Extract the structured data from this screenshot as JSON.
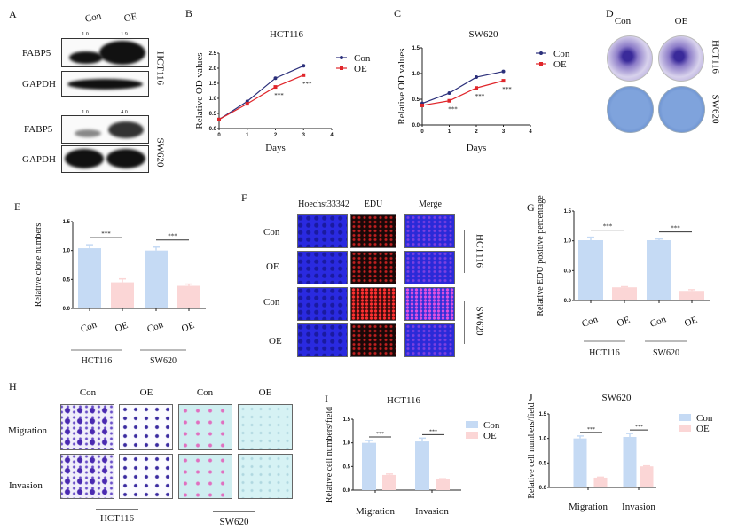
{
  "panel_letters": {
    "A": "A",
    "B": "B",
    "C": "C",
    "D": "D",
    "E": "E",
    "F": "F",
    "G": "G",
    "H": "H",
    "I": "I",
    "J": "J"
  },
  "western_blot": {
    "lanes": [
      "Con",
      "OE"
    ],
    "hct116": {
      "cell_line": "HCT116",
      "ratios": [
        "1.0",
        "1.9"
      ],
      "target": "FABP5",
      "loading_control": "GAPDH"
    },
    "sw620": {
      "cell_line": "SW620",
      "ratios": [
        "1.0",
        "4.0"
      ],
      "target": "FABP5",
      "loading_control": "GAPDH"
    }
  },
  "colony_images": {
    "columns": [
      "Con",
      "OE"
    ],
    "rows": [
      "HCT116",
      "SW620"
    ]
  },
  "edu_images": {
    "columns": [
      "Hoechst33342",
      "EDU",
      "Merge"
    ],
    "rows": [
      "Con",
      "OE",
      "Con",
      "OE"
    ],
    "groups": [
      "HCT116",
      "SW620"
    ]
  },
  "transwell_images": {
    "columns": [
      "Con",
      "OE",
      "Con",
      "OE"
    ],
    "rows": [
      "Migration",
      "Invasion"
    ],
    "groups": [
      "HCT116",
      "SW620"
    ]
  },
  "colors": {
    "con_line": "#2b2f7a",
    "oe_line": "#e0262b",
    "con_bar": "#c5daf4",
    "oe_bar": "#fbd6d6"
  },
  "chart_data": [
    {
      "panel": "B",
      "type": "line",
      "title": "HCT116",
      "xlabel": "Days",
      "ylabel": "Relative OD values",
      "x": [
        0,
        1,
        2,
        3
      ],
      "xlim": [
        0,
        4
      ],
      "xticks": [
        "0",
        "1",
        "2",
        "3",
        "4"
      ],
      "ylim": [
        0,
        2.5
      ],
      "yticks": [
        "0.0",
        "0.5",
        "1.0",
        "1.5",
        "2.0",
        "2.5"
      ],
      "series": [
        {
          "name": "Con",
          "values": [
            0.3,
            0.9,
            1.67,
            2.08
          ]
        },
        {
          "name": "OE",
          "values": [
            0.3,
            0.82,
            1.38,
            1.77
          ]
        }
      ],
      "significance": [
        {
          "x": 2,
          "label": "***"
        },
        {
          "x": 3,
          "label": "***"
        }
      ],
      "legend": "right"
    },
    {
      "panel": "C",
      "type": "line",
      "title": "SW620",
      "xlabel": "Days",
      "ylabel": "Relative OD values",
      "x": [
        0,
        1,
        2,
        3
      ],
      "xlim": [
        0,
        4
      ],
      "xticks": [
        "0",
        "1",
        "2",
        "3",
        "4"
      ],
      "ylim": [
        0,
        1.5
      ],
      "yticks": [
        "0.0",
        "0.5",
        "1.0",
        "1.5"
      ],
      "series": [
        {
          "name": "Con",
          "values": [
            0.42,
            0.62,
            0.93,
            1.04
          ]
        },
        {
          "name": "OE",
          "values": [
            0.38,
            0.47,
            0.72,
            0.86
          ]
        }
      ],
      "significance": [
        {
          "x": 1,
          "label": "***"
        },
        {
          "x": 2,
          "label": "***"
        },
        {
          "x": 3,
          "label": "***"
        }
      ],
      "legend": "right"
    },
    {
      "panel": "E",
      "type": "bar",
      "ylabel": "Relative clone numbers",
      "categories": [
        "Con",
        "OE",
        "Con",
        "OE"
      ],
      "groups": [
        "HCT116",
        "SW620"
      ],
      "values": [
        1.04,
        0.45,
        1.0,
        0.39
      ],
      "errors": [
        0.06,
        0.06,
        0.06,
        0.03
      ],
      "ylim": [
        0,
        1.5
      ],
      "yticks": [
        "0.0",
        "0.5",
        "1.0",
        "1.5"
      ],
      "significance": [
        {
          "pair": [
            0,
            1
          ],
          "label": "***"
        },
        {
          "pair": [
            2,
            3
          ],
          "label": "***"
        }
      ]
    },
    {
      "panel": "G",
      "type": "bar",
      "ylabel": "Relative EDU positive percentage",
      "categories": [
        "Con",
        "OE",
        "Con",
        "OE"
      ],
      "groups": [
        "HCT116",
        "SW620"
      ],
      "values": [
        1.01,
        0.22,
        1.01,
        0.16
      ],
      "errors": [
        0.05,
        0.01,
        0.02,
        0.02
      ],
      "ylim": [
        0,
        1.5
      ],
      "yticks": [
        "0.0",
        "0.5",
        "1.0",
        "1.5"
      ],
      "significance": [
        {
          "pair": [
            0,
            1
          ],
          "label": "***"
        },
        {
          "pair": [
            2,
            3
          ],
          "label": "***"
        }
      ]
    },
    {
      "panel": "I",
      "type": "bar",
      "title": "HCT116",
      "ylabel": "Relative cell numbers/field",
      "categories": [
        "Migration",
        "Invasion"
      ],
      "series": [
        {
          "name": "Con",
          "values": [
            1.0,
            1.03
          ],
          "errors": [
            0.05,
            0.07
          ]
        },
        {
          "name": "OE",
          "values": [
            0.32,
            0.23
          ],
          "errors": [
            0.02,
            0.01
          ]
        }
      ],
      "ylim": [
        0,
        1.5
      ],
      "yticks": [
        "0.0",
        "0.5",
        "1.0",
        "1.5"
      ],
      "significance": [
        {
          "category": 0,
          "label": "***"
        },
        {
          "category": 1,
          "label": "***"
        }
      ],
      "legend": "right"
    },
    {
      "panel": "J",
      "type": "bar",
      "title": "SW620",
      "ylabel": "Relative cell numbers/field",
      "categories": [
        "Migration",
        "Invasion"
      ],
      "series": [
        {
          "name": "Con",
          "values": [
            1.0,
            1.03
          ],
          "errors": [
            0.05,
            0.07
          ]
        },
        {
          "name": "OE",
          "values": [
            0.2,
            0.43
          ],
          "errors": [
            0.01,
            0.01
          ]
        }
      ],
      "ylim": [
        0,
        1.5
      ],
      "yticks": [
        "0.0",
        "0.5",
        "1.0",
        "1.5"
      ],
      "significance": [
        {
          "category": 0,
          "label": "***"
        },
        {
          "category": 1,
          "label": "***"
        }
      ],
      "legend": "right"
    }
  ]
}
